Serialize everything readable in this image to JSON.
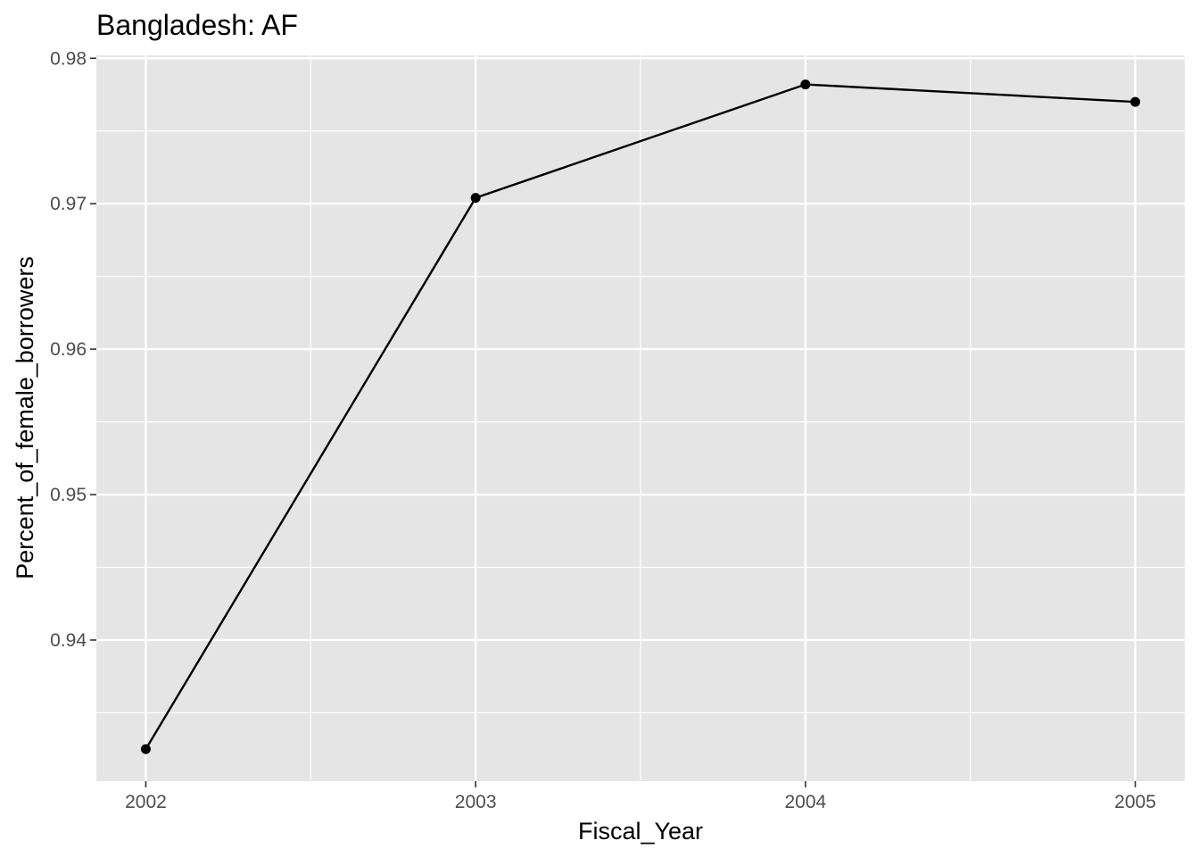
{
  "chart_data": {
    "type": "line",
    "title": "Bangladesh:  AF",
    "xlabel": "Fiscal_Year",
    "ylabel": "Percent_of_female_borrowers",
    "x": [
      2002,
      2003,
      2004,
      2005
    ],
    "series": [
      {
        "values": [
          0.9325,
          0.9704,
          0.9782,
          0.977
        ]
      }
    ],
    "xlim": [
      2001.85,
      2005.15
    ],
    "ylim": [
      0.9303,
      0.9802
    ],
    "x_ticks": [
      2002,
      2003,
      2004,
      2005
    ],
    "x_tick_labels": [
      "2002",
      "2003",
      "2004",
      "2005"
    ],
    "y_ticks": [
      0.94,
      0.95,
      0.96,
      0.97,
      0.98
    ],
    "y_tick_labels": [
      "0.94",
      "0.95",
      "0.96",
      "0.97",
      "0.98"
    ],
    "grid": true,
    "legend": "none",
    "colors": {
      "panel_background": "#e5e5e5",
      "grid": "#ffffff",
      "line": "#000000",
      "point": "#000000",
      "tick_label": "#4d4d4d"
    }
  }
}
